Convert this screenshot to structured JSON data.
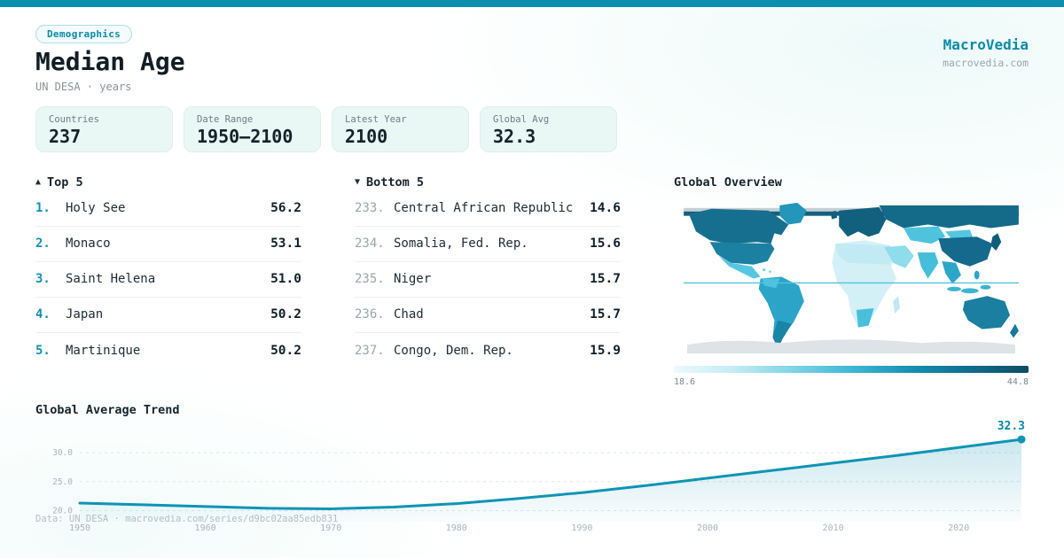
{
  "colors": {
    "accent": "#0b8fad",
    "accent_text": "#0b8aa8",
    "dark_text": "#121e26",
    "muted_text": "#8a949b",
    "card_bg": "#e9f7f5"
  },
  "header": {
    "badge": "Demographics",
    "title": "Median Age",
    "subtitle": "UN DESA · years",
    "brand": "MacroVedia",
    "brand_domain": "macrovedia.com"
  },
  "stats": [
    {
      "label": "Countries",
      "value": "237"
    },
    {
      "label": "Date Range",
      "value": "1950—2100"
    },
    {
      "label": "Latest Year",
      "value": "2100"
    },
    {
      "label": "Global Avg",
      "value": "32.3"
    }
  ],
  "top5": {
    "marker": "▲",
    "header": "Top 5",
    "rows": [
      {
        "rank": "1.",
        "name": "Holy See",
        "value": "56.2"
      },
      {
        "rank": "2.",
        "name": "Monaco",
        "value": "53.1"
      },
      {
        "rank": "3.",
        "name": "Saint Helena",
        "value": "51.0"
      },
      {
        "rank": "4.",
        "name": "Japan",
        "value": "50.2"
      },
      {
        "rank": "5.",
        "name": "Martinique",
        "value": "50.2"
      }
    ]
  },
  "bottom5": {
    "marker": "▼",
    "header": "Bottom 5",
    "rows": [
      {
        "rank": "233.",
        "name": "Central African Republic",
        "value": "14.6"
      },
      {
        "rank": "234.",
        "name": "Somalia, Fed. Rep.",
        "value": "15.6"
      },
      {
        "rank": "235.",
        "name": "Niger",
        "value": "15.7"
      },
      {
        "rank": "236.",
        "name": "Chad",
        "value": "15.7"
      },
      {
        "rank": "237.",
        "name": "Congo, Dem. Rep.",
        "value": "15.9"
      }
    ]
  },
  "map": {
    "title": "Global Overview",
    "scale_min": "18.6",
    "scale_max": "44.8",
    "scale_gradient": [
      "#eef9fc",
      "#c3ecf4",
      "#7fd4e6",
      "#3eb8d6",
      "#1490b4",
      "#0f6d8d",
      "#0d4d63"
    ],
    "region_colors": {
      "arctic-gray": "#c6cfd4",
      "arctic-dark": "#15607c",
      "greenland": "#2496ba",
      "canada": "#166f8e",
      "usa": "#1b80a2",
      "mexico": "#57c6e1",
      "central-america": "#49c0dd",
      "caribbean": "#6fd0e6",
      "south-america": "#2ba4c8",
      "andes": "#4ec2de",
      "argentina": "#1a84a6",
      "north-africa": "#c2eaf4",
      "africa": "#d4f0f7",
      "south-africa": "#49bfdb",
      "madagascar": "#bfe9f2",
      "europe": "#11607e",
      "uk": "#11607e",
      "russia": "#136a89",
      "central-asia": "#4fc3de",
      "mongolia": "#55c6e0",
      "china": "#15698d",
      "middle-east": "#8edcec",
      "india": "#47bed9",
      "se-asia": "#2ba6c8",
      "indonesia": "#3cb4d1",
      "philippines": "#2ba6c8",
      "japan": "#0f5e7c",
      "korea": "#12688a",
      "australia": "#1a7fa0",
      "new-zealand": "#17789a",
      "antarctica": "#dde3e6",
      "equator": "#4fc3de"
    }
  },
  "chart_data": {
    "type": "area",
    "title": "Global Average Trend",
    "x": [
      1950,
      1955,
      1960,
      1965,
      1970,
      1975,
      1980,
      1985,
      1990,
      1995,
      2000,
      2005,
      2010,
      2015,
      2020,
      2025
    ],
    "values": [
      21.3,
      21.0,
      20.7,
      20.4,
      20.3,
      20.6,
      21.2,
      22.1,
      23.1,
      24.3,
      25.6,
      26.9,
      28.2,
      29.5,
      30.9,
      32.3
    ],
    "xlabel": "",
    "ylabel": "",
    "ylim": [
      19,
      34
    ],
    "x_ticks": [
      1950,
      1960,
      1970,
      1980,
      1990,
      2000,
      2010,
      2020
    ],
    "y_ticks": [
      20,
      25,
      30
    ],
    "y_tick_labels": [
      "20.0",
      "25.0",
      "30.0"
    ],
    "end_label": "32.3",
    "line_color": "#0d94b5",
    "grid": true,
    "legend": false
  },
  "footer": {
    "text": "Data: UN DESA · macrovedia.com/series/d9bc02aa85edb831"
  }
}
